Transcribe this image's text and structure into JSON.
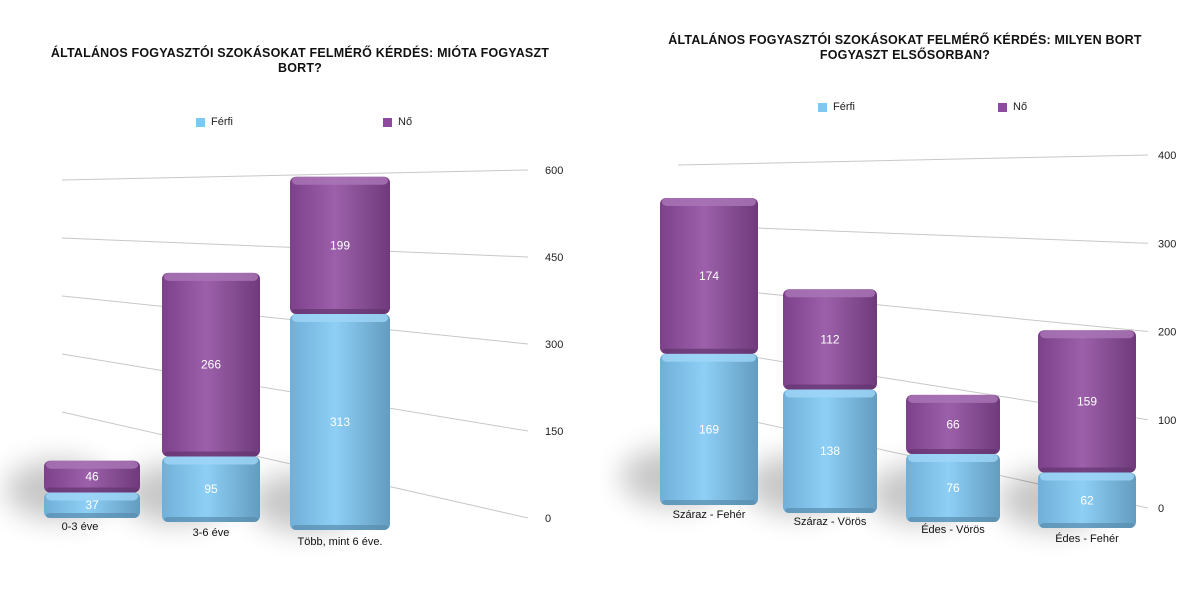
{
  "colors": {
    "ferfi": "#7fc8f5",
    "no": "#8e4a9e",
    "grid": "#c8c8c8"
  },
  "chart_data": [
    {
      "type": "bar",
      "stacked": true,
      "title": "ÁLTALÁNOS FOGYASZTÓI SZOKÁSOKAT FELMÉRŐ KÉRDÉS: MIÓTA FOGYASZT BORT?",
      "categories": [
        "0-3 éve",
        "3-6 éve",
        "Több, mint 6 éve."
      ],
      "series": [
        {
          "name": "Férfi",
          "values": [
            37,
            95,
            313
          ]
        },
        {
          "name": "Nő",
          "values": [
            46,
            266,
            199
          ]
        }
      ],
      "ylim": [
        0,
        600
      ],
      "yticks": [
        0,
        150,
        300,
        450,
        600
      ],
      "grid": true,
      "legend": "top",
      "axis_side": "right"
    },
    {
      "type": "bar",
      "stacked": true,
      "title": "ÁLTALÁNOS FOGYASZTÓI SZOKÁSOKAT FELMÉRŐ KÉRDÉS: MILYEN BORT FOGYASZT ELSŐSORBAN?",
      "categories": [
        "Száraz - Fehér",
        "Száraz - Vörös",
        "Édes - Vörös",
        "Édes - Fehér"
      ],
      "series": [
        {
          "name": "Férfi",
          "values": [
            169,
            138,
            76,
            62
          ]
        },
        {
          "name": "Nő",
          "values": [
            174,
            112,
            66,
            159
          ]
        }
      ],
      "ylim": [
        0,
        400
      ],
      "yticks": [
        0,
        100,
        200,
        300,
        400
      ],
      "grid": true,
      "legend": "top",
      "axis_side": "right"
    }
  ]
}
